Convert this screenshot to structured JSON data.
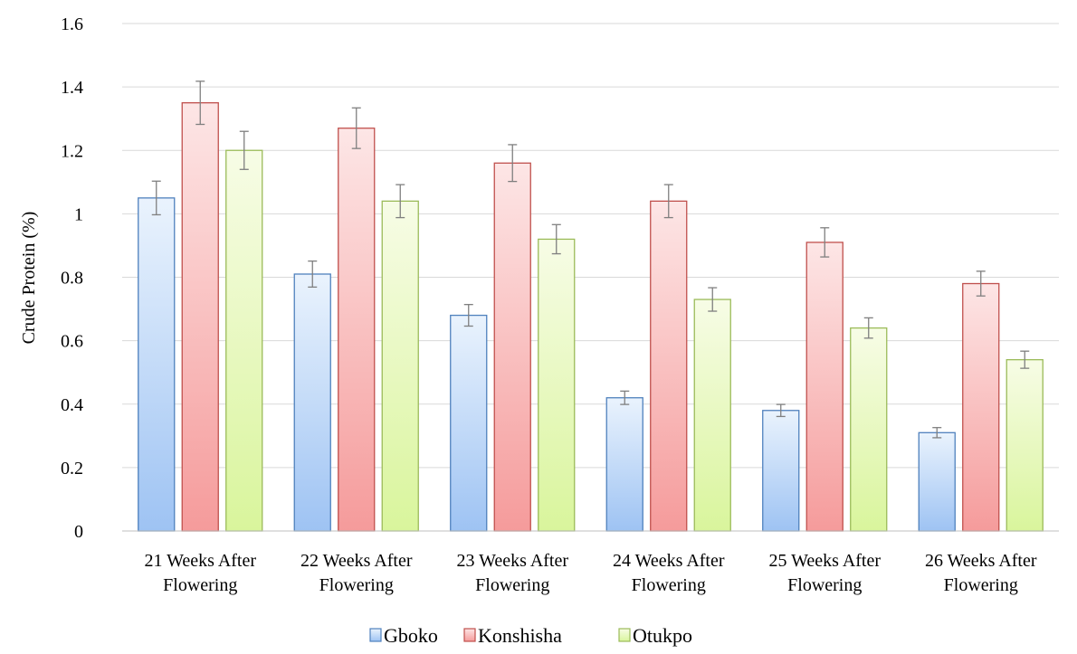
{
  "chart_data": {
    "type": "bar",
    "title": "",
    "xlabel": "",
    "ylabel": "Crude Protein (%)",
    "ylim": [
      0,
      1.6
    ],
    "yticks": [
      "0",
      "0.2",
      "0.4",
      "0.6",
      "0.8",
      "1",
      "1.2",
      "1.4",
      "1.6"
    ],
    "ytick_values": [
      0,
      0.2,
      0.4,
      0.6,
      0.8,
      1.0,
      1.2,
      1.4,
      1.6
    ],
    "grid": true,
    "legend_position": "bottom",
    "categories": [
      [
        "21 Weeks After",
        "Flowering"
      ],
      [
        "22 Weeks After",
        "Flowering"
      ],
      [
        "23 Weeks After",
        "Flowering"
      ],
      [
        "24 Weeks After",
        "Flowering"
      ],
      [
        "25 Weeks After",
        "Flowering"
      ],
      [
        "26 Weeks After",
        "Flowering"
      ]
    ],
    "series": [
      {
        "name": "Gboko",
        "values": [
          1.05,
          0.81,
          0.68,
          0.42,
          0.38,
          0.31
        ],
        "errors": [
          0.053,
          0.041,
          0.034,
          0.021,
          0.019,
          0.016
        ],
        "color_top": "#eaf3fd",
        "color_bottom": "#9ec3f3",
        "border": "#4f81bd"
      },
      {
        "name": "Konshisha",
        "values": [
          1.35,
          1.27,
          1.16,
          1.04,
          0.91,
          0.78
        ],
        "errors": [
          0.068,
          0.064,
          0.058,
          0.052,
          0.046,
          0.039
        ],
        "color_top": "#fde6e6",
        "color_bottom": "#f59b9b",
        "border": "#c0504d"
      },
      {
        "name": "Otukpo",
        "values": [
          1.2,
          1.04,
          0.92,
          0.73,
          0.64,
          0.54
        ],
        "errors": [
          0.06,
          0.052,
          0.046,
          0.037,
          0.032,
          0.027
        ],
        "color_top": "#f7fce6",
        "color_bottom": "#d9f59c",
        "border": "#9bbb59"
      }
    ]
  }
}
